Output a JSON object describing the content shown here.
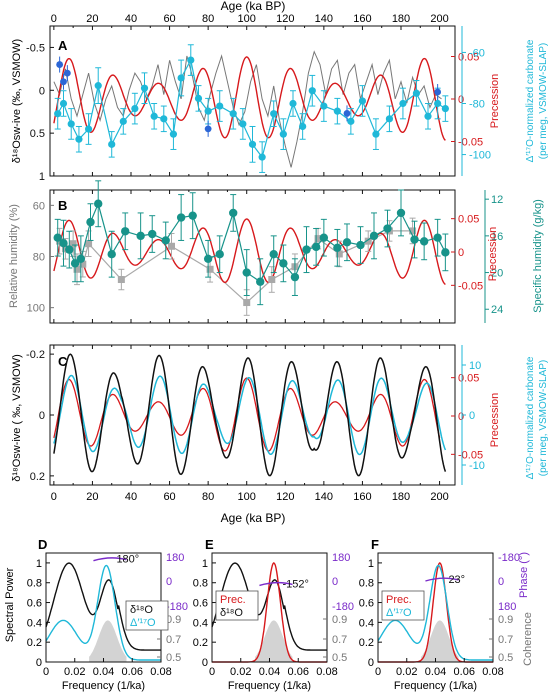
{
  "colors": {
    "black": "#111111",
    "gray": "#777777",
    "lightgray": "#a9a9a9",
    "red": "#d7191c",
    "cyan": "#1fb8d8",
    "teal": "#17938a",
    "blue": "#2c66d6",
    "purple": "#7a2bc9",
    "fill": "#d3d3d3"
  },
  "chart_data": [
    {
      "panel": "A",
      "type": "line",
      "xlabel": "Age (ka BP)",
      "xticks": [
        "0",
        "20",
        "40",
        "60",
        "80",
        "100",
        "120",
        "140",
        "160",
        "180",
        "200"
      ],
      "x_range": [
        -2,
        208
      ],
      "yleft": {
        "label": "δ¹⁸Osw-ive (‰, VSMOW)",
        "ticks": [
          "-0.5",
          "0",
          "0.5",
          "1"
        ],
        "range": [
          -0.75,
          1.0
        ]
      },
      "yright_red": {
        "label": "Precession",
        "ticks": [
          "0.05",
          "0",
          "-0.05"
        ],
        "range": [
          -0.06,
          0.06
        ]
      },
      "yright_cyan": {
        "label_line1": "Δ′¹⁷O-normalized carbonate",
        "label_line2": "(per meg, VSMOW-SLAP)",
        "ticks": [
          "-60",
          "-80",
          "-100"
        ],
        "range": [
          -52,
          -108
        ]
      },
      "series": [
        {
          "role": "gray-record",
          "x": [
            0,
            3,
            6,
            9,
            12,
            15,
            18,
            21,
            24,
            27,
            30,
            33,
            36,
            39,
            42,
            45,
            48,
            51,
            54,
            57,
            60,
            63,
            66,
            69,
            72,
            75,
            78,
            81,
            84,
            87,
            90,
            93,
            96,
            99,
            102,
            105,
            108,
            111,
            114,
            117,
            120,
            123,
            126,
            129,
            132,
            135,
            138,
            141,
            144,
            147,
            150,
            153,
            156,
            159,
            162,
            165,
            168,
            171,
            174,
            177,
            180,
            183,
            186,
            189,
            192,
            195,
            198,
            201
          ],
          "y": [
            -0.1,
            0.05,
            -0.25,
            0.1,
            0.3,
            0.05,
            -0.2,
            0.15,
            0.35,
            0.1,
            -0.05,
            0.2,
            0.3,
            0,
            -0.2,
            -0.1,
            0.1,
            -0.05,
            -0.3,
            0.05,
            -0.35,
            -0.1,
            0.1,
            -0.4,
            -0.15,
            0.2,
            0.35,
            0.05,
            -0.2,
            -0.4,
            -0.1,
            0.2,
            0.4,
            0.25,
            -0.1,
            -0.3,
            0.1,
            0.3,
            -0.05,
            0.35,
            0.65,
            0.9,
            0.6,
            0.25,
            -0.2,
            -0.45,
            -0.3,
            0.05,
            -0.25,
            -0.35,
            0.05,
            -0.2,
            -0.3,
            0.1,
            -0.1,
            -0.3,
            0.05,
            -0.2,
            -0.35,
            0.1,
            -0.1,
            0.15,
            -0.15,
            0.05,
            -0.05,
            0.2,
            0.05,
            0.1
          ]
        },
        {
          "role": "cyan-points",
          "x": [
            2,
            5,
            9,
            13,
            18,
            23,
            30,
            36,
            42,
            47,
            52,
            57,
            62,
            66,
            71,
            75,
            80,
            86,
            93,
            98,
            103,
            108,
            114,
            119,
            124,
            129,
            134,
            140,
            147,
            154,
            160,
            167,
            174,
            181,
            188,
            194,
            199,
            203
          ],
          "y": [
            -84,
            -80,
            -88,
            -94,
            -90,
            -73,
            -96,
            -87,
            -82,
            -74,
            -85,
            -86,
            -92,
            -70,
            -63,
            -78,
            -83,
            -81,
            -84,
            -88,
            -96,
            -101,
            -84,
            -92,
            -80,
            -89,
            -75,
            -81,
            -83,
            -87,
            -79,
            -92,
            -86,
            -80,
            -76,
            -85,
            -80,
            -82
          ],
          "yerr": [
            6,
            5,
            6,
            5,
            6,
            7,
            5,
            5,
            6,
            6,
            5,
            5,
            6,
            7,
            6,
            5,
            5,
            6,
            6,
            6,
            7,
            6,
            5,
            6,
            5,
            5,
            6,
            6,
            5,
            5,
            6,
            6,
            5,
            6,
            5,
            5,
            6,
            5
          ]
        },
        {
          "role": "blue-points",
          "x": [
            3,
            5,
            7,
            80,
            152,
            199
          ],
          "y": [
            -0.3,
            -0.1,
            -0.2,
            0.45,
            0.27,
            0.02
          ]
        },
        {
          "role": "red-precession",
          "period_ka": 23,
          "amplitude": 0.045
        }
      ]
    },
    {
      "panel": "B",
      "type": "line",
      "xticks": [
        "0",
        "20",
        "40",
        "60",
        "80",
        "100",
        "120",
        "140",
        "160",
        "180",
        "200"
      ],
      "yleft": {
        "label": "Relative humidity (%)",
        "ticks": [
          "60",
          "80",
          "100"
        ],
        "range": [
          54,
          106
        ]
      },
      "yright_red": {
        "label": "Precession",
        "ticks": [
          "0.05",
          "0",
          "-0.05"
        ],
        "range": [
          -0.06,
          0.06
        ]
      },
      "yright_teal": {
        "label": "Specific humidity (g/kg)",
        "ticks": [
          "12",
          "16",
          "20",
          "24"
        ],
        "range": [
          11,
          25.5
        ]
      },
      "series": [
        {
          "role": "teal-points",
          "x": [
            2,
            5,
            8,
            11,
            14,
            19,
            23,
            30,
            37,
            45,
            51,
            58,
            66,
            72,
            80,
            86,
            93,
            100,
            107,
            114,
            119,
            125,
            131,
            136,
            140,
            147,
            152,
            159,
            166,
            173,
            180,
            187,
            192,
            199,
            203
          ],
          "y": [
            16.2,
            16.8,
            17.5,
            19,
            18.5,
            14.5,
            12.5,
            18,
            15.5,
            16,
            15.8,
            16.5,
            14,
            13.8,
            18.5,
            18,
            13.5,
            20,
            21,
            18,
            19,
            20.5,
            17.5,
            17.2,
            16.2,
            17.3,
            16.7,
            17,
            16,
            15.2,
            13.5,
            16.4,
            16.6,
            16.2,
            17.8
          ],
          "yerr": [
            2,
            2.5,
            2,
            2,
            2.5,
            2,
            2.5,
            2.5,
            2,
            2.5,
            2,
            2,
            2.5,
            2.5,
            2,
            2,
            2,
            2.5,
            2.5,
            2,
            2,
            2,
            2.5,
            2,
            2,
            2,
            2,
            2,
            2.5,
            2,
            2.5,
            2,
            2,
            2,
            2
          ]
        },
        {
          "role": "gray-points",
          "x": [
            3,
            6,
            10,
            12,
            15,
            18,
            35,
            61,
            81,
            100,
            113,
            125,
            137,
            148,
            163,
            174,
            186
          ],
          "y": [
            74,
            77,
            75,
            85,
            83,
            75,
            89,
            76,
            85,
            98,
            89,
            84,
            73,
            79,
            74,
            70,
            70
          ],
          "yerr": [
            5,
            4,
            5,
            6,
            5,
            5,
            4,
            5,
            5,
            5,
            5,
            5,
            4,
            5,
            4,
            4,
            5
          ]
        },
        {
          "role": "red-precession",
          "period_ka": 23,
          "amplitude": 0.045
        }
      ]
    },
    {
      "panel": "C",
      "type": "line",
      "xlabel": "Age (ka BP)",
      "xticks": [
        "0",
        "20",
        "40",
        "60",
        "80",
        "100",
        "120",
        "140",
        "160",
        "180",
        "200"
      ],
      "yleft": {
        "label": "δ¹⁸Osw-ive ( ‰, VSMOW)",
        "ticks": [
          "-0.2",
          "0",
          "0.2"
        ],
        "range": [
          -0.23,
          0.23
        ]
      },
      "yright_red": {
        "label": "Precession",
        "ticks": [
          "0.05",
          "0",
          "-0.05"
        ],
        "range": [
          -0.06,
          0.06
        ]
      },
      "yright_cyan": {
        "label_line1": "Δ′¹⁷O-normalized carbonate",
        "label_line2": "(per meg, VSMOW-SLAP)",
        "ticks": [
          "10",
          "0",
          "-10"
        ],
        "range": [
          13,
          -13
        ]
      },
      "series": [
        {
          "role": "black-filtered",
          "period_ka": 23
        },
        {
          "role": "cyan-filtered",
          "period_ka": 23
        },
        {
          "role": "red-precession",
          "period_ka": 23
        }
      ]
    },
    {
      "panel": "D",
      "type": "line",
      "xlabel": "Frequency (1/ka)",
      "ylabel": "Spectral Power",
      "xticks": [
        "0",
        "0.02",
        "0.04",
        "0.06",
        "0.08"
      ],
      "yticks": [
        "0",
        "0.2",
        "0.4",
        "0.6",
        "0.8",
        "1"
      ],
      "phase_ticks": [
        "180",
        "0",
        "-180"
      ],
      "coh_ticks": [
        "0.9",
        "0.7",
        "0.5"
      ],
      "legend": [
        "δ¹⁸O",
        "Δ′¹⁷O"
      ],
      "phase_label": "180°"
    },
    {
      "panel": "E",
      "type": "line",
      "xlabel": "Frequency (1/ka)",
      "xticks": [
        "0",
        "0.02",
        "0.04",
        "0.06",
        "0.08"
      ],
      "yticks": [
        "0",
        "0.2",
        "0.4",
        "0.6",
        "0.8",
        "1"
      ],
      "phase_ticks": [
        "180",
        "0",
        "-180"
      ],
      "coh_ticks": [
        "0.9",
        "0.7",
        "0.5"
      ],
      "legend": [
        "Prec.",
        "δ¹⁸O"
      ],
      "phase_label": "-152°"
    },
    {
      "panel": "F",
      "type": "line",
      "xlabel": "Frequency (1/ka)",
      "xticks": [
        "0",
        "0.02",
        "0.04",
        "0.06",
        "0.08"
      ],
      "yticks": [
        "0",
        "0.2",
        "0.4",
        "0.6",
        "0.8",
        "1"
      ],
      "phase_ticks": [
        "-180",
        "0",
        "180"
      ],
      "coh_ticks": [
        "0.9",
        "0.7",
        "0.5"
      ],
      "phase_axis_label": "Phase (°)",
      "coh_axis_label": "Coherence",
      "legend": [
        "Prec.",
        "Δ′¹⁷O"
      ],
      "phase_label": "23°"
    }
  ]
}
